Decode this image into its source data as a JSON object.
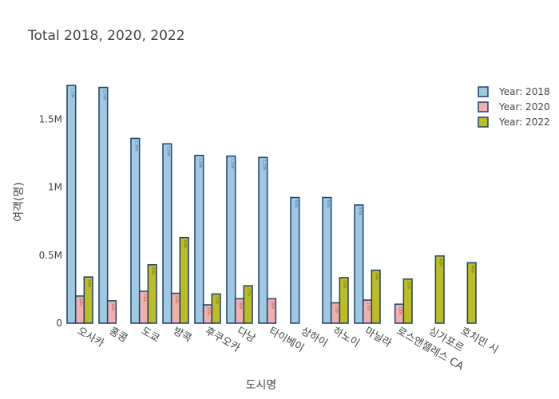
{
  "chart_data": {
    "type": "bar",
    "title": "Total 2018, 2020, 2022",
    "xlabel": "도시명",
    "ylabel": "여객(명)",
    "ylim": [
      0,
      1850000
    ],
    "yticks": [
      {
        "value": 0,
        "label": "0"
      },
      {
        "value": 500000,
        "label": "0.5M"
      },
      {
        "value": 1000000,
        "label": "1M"
      },
      {
        "value": 1500000,
        "label": "1.5M"
      }
    ],
    "categories": [
      "오사카",
      "홍콩",
      "도쿄",
      "방콕",
      "후쿠오카",
      "다낭",
      "타이베이",
      "상하이",
      "하노이",
      "마닐라",
      "로스앤젤레스 CA",
      "싱가포르",
      "호치민 시"
    ],
    "series": [
      {
        "name": "Year: 2018",
        "color": "#9ecae1",
        "text_color": "#3a6f9a",
        "values": [
          1750000,
          1735000,
          1360000,
          1320000,
          1235000,
          1230000,
          1220000,
          925000,
          925000,
          870000,
          null,
          null,
          null
        ],
        "labels": [
          "1.75M",
          "1.74M",
          "1.36M",
          "1.32M",
          "1.24M",
          "1.23M",
          "1.22M",
          "925k",
          "925k",
          "870k",
          null,
          null,
          null
        ]
      },
      {
        "name": "Year: 2020",
        "color": "#f0b0ad",
        "text_color": "#b5514d",
        "values": [
          200000,
          165000,
          235000,
          220000,
          135000,
          180000,
          180000,
          null,
          150000,
          170000,
          140000,
          null,
          null
        ],
        "labels": [
          "200k",
          "165k",
          "235k",
          "220k",
          "135k",
          "180k",
          "180k",
          null,
          "150k",
          "170k",
          "140k",
          null,
          null
        ]
      },
      {
        "name": "Year: 2022",
        "color": "#bcbd22",
        "text_color": "#6b6c10",
        "values": [
          340000,
          null,
          430000,
          630000,
          215000,
          275000,
          null,
          null,
          335000,
          390000,
          325000,
          495000,
          445000
        ],
        "labels": [
          "340k",
          null,
          "430k",
          "630k",
          "215k",
          "275k",
          null,
          null,
          "335k",
          "390k",
          "325k",
          "495k",
          "445k"
        ]
      }
    ],
    "bar_outline_color": "#1f3f6e",
    "legend_position": "top-right",
    "grid": false
  }
}
